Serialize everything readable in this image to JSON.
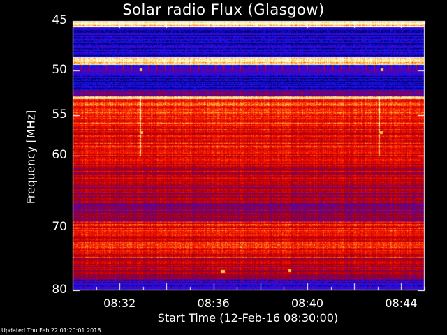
{
  "chart_data": {
    "type": "heatmap",
    "title": "Solar radio Flux (Glasgow)",
    "xlabel": "Start Time (12-Feb-16 08:30:00)",
    "ylabel": "Frequency [MHz]",
    "y_ticks": [
      "45",
      "50",
      "55",
      "60",
      "70",
      "80"
    ],
    "x_ticks": [
      "08:32",
      "08:36",
      "08:40",
      "08:44"
    ],
    "ylim": [
      45,
      80
    ],
    "y_scale": "log",
    "x_range_minutes": [
      0,
      15
    ],
    "bands": [
      {
        "from": 45.0,
        "to": 45.6,
        "level": 0.95
      },
      {
        "from": 45.6,
        "to": 48.6,
        "level": 0.1
      },
      {
        "from": 48.6,
        "to": 49.4,
        "level": 1.0
      },
      {
        "from": 49.4,
        "to": 50.4,
        "level": 0.2
      },
      {
        "from": 50.4,
        "to": 52.2,
        "level": 0.08
      },
      {
        "from": 52.2,
        "to": 52.8,
        "level": 0.35
      },
      {
        "from": 52.8,
        "to": 53.1,
        "level": 0.92
      },
      {
        "from": 53.1,
        "to": 56.0,
        "level": 0.68
      },
      {
        "from": 56.0,
        "to": 61.0,
        "level": 0.62
      },
      {
        "from": 61.0,
        "to": 64.0,
        "level": 0.5
      },
      {
        "from": 64.0,
        "to": 66.5,
        "level": 0.45
      },
      {
        "from": 66.5,
        "to": 69.0,
        "level": 0.4
      },
      {
        "from": 69.0,
        "to": 74.5,
        "level": 0.62
      },
      {
        "from": 74.5,
        "to": 78.0,
        "level": 0.5
      },
      {
        "from": 78.0,
        "to": 80.0,
        "level": 0.2
      }
    ]
  },
  "footer": {
    "updated": "Updated Thu Feb 22 01:20:01 2018"
  }
}
